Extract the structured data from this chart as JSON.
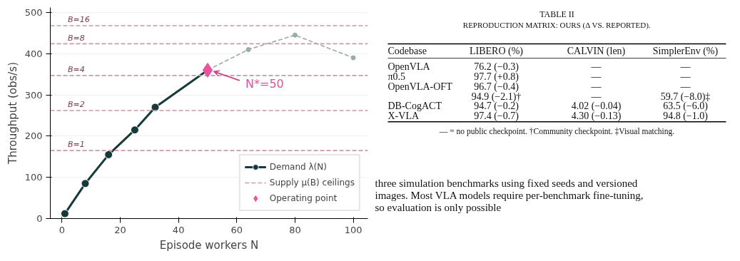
{
  "chart_data": [
    {
      "type": "line",
      "xlabel": "Episode workers N",
      "ylabel": "Throughput (obs/s)",
      "xlim": [
        -4,
        105
      ],
      "ylim": [
        0,
        512
      ],
      "xticks": [
        0,
        20,
        40,
        60,
        80,
        100
      ],
      "yticks": [
        0,
        100,
        200,
        300,
        400,
        500
      ],
      "grid": "y",
      "legend": "bottom right",
      "series": [
        {
          "name": "Demand λ(N)",
          "type": "line",
          "color": "#163a3a",
          "marker": "circle",
          "line_style": "solid",
          "x": [
            1,
            8,
            16,
            25,
            32,
            50
          ],
          "values": [
            12,
            85,
            155,
            215,
            270,
            360
          ]
        },
        {
          "type": "line",
          "color": "#9aaca8",
          "marker": "circle",
          "line_style": "dashed",
          "x": [
            50,
            64,
            80,
            100
          ],
          "values": [
            360,
            410,
            445,
            390
          ]
        },
        {
          "name": "Supply μ(B) ceilings",
          "type": "line",
          "color": "#c99aa5",
          "marker": "none",
          "line_style": "dashed",
          "x": [
            -4,
            105
          ],
          "values": [
            165,
            165
          ]
        },
        {
          "type": "line",
          "color": "#c99aa5",
          "marker": "none",
          "line_style": "dashed",
          "x": [
            -4,
            105
          ],
          "values": [
            262,
            262
          ]
        },
        {
          "type": "line",
          "color": "#c99aa5",
          "marker": "none",
          "line_style": "dashed",
          "x": [
            -4,
            105
          ],
          "values": [
            347,
            347
          ]
        },
        {
          "type": "line",
          "color": "#c99aa5",
          "marker": "none",
          "line_style": "dashed",
          "x": [
            -4,
            105
          ],
          "values": [
            424,
            424
          ]
        },
        {
          "type": "line",
          "color": "#c99aa5",
          "marker": "none",
          "line_style": "dashed",
          "x": [
            -4,
            105
          ],
          "values": [
            468,
            468
          ]
        },
        {
          "name": "Operating point",
          "type": "scatter",
          "color": "#e8559a",
          "marker": "diamond",
          "x": [
            50
          ],
          "values": [
            360
          ]
        }
      ],
      "annotations": [
        {
          "text": "N*=50",
          "x": 50,
          "y": 360
        },
        {
          "text": "B=1",
          "y": 165
        },
        {
          "text": "B=2",
          "y": 262
        },
        {
          "text": "B=4",
          "y": 347
        },
        {
          "text": "B=8",
          "y": 424
        },
        {
          "text": "B=16",
          "y": 468
        }
      ]
    },
    {
      "type": "other",
      "title": "TABLE II",
      "subtitle": "REPRODUCTION MATRIX: OURS (Δ VS. REPORTED).",
      "categories": [
        "Codebase",
        "LIBERO (%)",
        "CALVIN (len)",
        "SimplerEnv (%)"
      ],
      "y_categories": [
        "OpenVLA",
        "π0.5",
        "OpenVLA-OFT",
        null,
        "DB-CogACT",
        "X-VLA"
      ],
      "cell_labels": [
        [
          "76.2 (−0.3)",
          "—",
          "—"
        ],
        [
          "97.7 (+0.8)",
          "—",
          "—"
        ],
        [
          "96.7 (−0.4)",
          "—",
          "—"
        ],
        [
          "94.9 (−2.1)†",
          "—",
          "59.7 (−8.0)‡"
        ],
        [
          "94.7 (−0.2)",
          "4.02 (−0.04)",
          "63.5 (−6.0)"
        ],
        [
          "97.4 (−0.7)",
          "4.30 (−0.13)",
          "94.8 (−1.0)"
        ]
      ],
      "annotations": [
        "— = no public checkpoint. †Community checkpoint. ‡Visual matching.",
        "three simulation benchmarks using fixed seeds and versioned images. Most VLA models require per-benchmark fine-tuning, so evaluation is only possible"
      ]
    }
  ]
}
